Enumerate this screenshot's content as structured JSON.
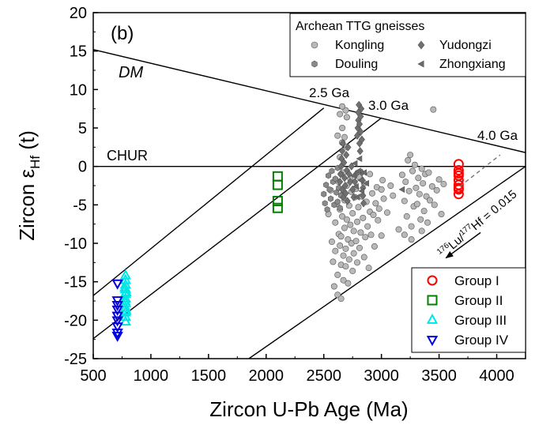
{
  "chart_data": {
    "type": "scatter",
    "panel_label": "(b)",
    "xlabel": "Zircon U-Pb Age (Ma)",
    "ylabel": {
      "main": "Zircon ε",
      "sub": "Hf",
      "tail": " (t)"
    },
    "xlim": [
      500,
      4250
    ],
    "ylim": [
      -25,
      20
    ],
    "xticks": [
      500,
      1000,
      1500,
      2000,
      2500,
      3000,
      3500,
      4000
    ],
    "yticks": [
      -25,
      -20,
      -15,
      -10,
      -5,
      0,
      5,
      10,
      15,
      20
    ],
    "grid": false,
    "reference_lines": [
      {
        "label": "DM",
        "points": [
          [
            500,
            15.2
          ],
          [
            4250,
            1.8
          ]
        ]
      },
      {
        "label": "CHUR",
        "points": [
          [
            500,
            0
          ],
          [
            4250,
            0
          ]
        ]
      }
    ],
    "evolution_lines": [
      {
        "label": "2.5 Ga",
        "points": [
          [
            500,
            -16.8
          ],
          [
            2500,
            7.6
          ]
        ]
      },
      {
        "label": "3.0 Ga",
        "points": [
          [
            500,
            -22.4
          ],
          [
            3000,
            6.3
          ]
        ]
      },
      {
        "label": "4.0 Ga",
        "points": [
          [
            1850,
            -25
          ],
          [
            4250,
            0
          ]
        ]
      }
    ],
    "slope_annotation": {
      "text_parts": [
        "176",
        "Lu/",
        "177",
        "Hf = 0.015"
      ],
      "arrow_from": [
        3860,
        -8.6
      ],
      "arrow_to": [
        3560,
        -11.9
      ],
      "dashed_from": [
        3680,
        -2.6
      ],
      "dashed_to": [
        4030,
        1.5
      ]
    },
    "legend_top": {
      "title": "Archean TTG gneisses",
      "position": "top-right",
      "entries": [
        {
          "name": "Kongling",
          "marker": "circle"
        },
        {
          "name": "Yudongzi",
          "marker": "diamond"
        },
        {
          "name": "Douling",
          "marker": "hexagon"
        },
        {
          "name": "Zhongxiang",
          "marker": "triangle-left"
        }
      ]
    },
    "legend_bottom": {
      "position": "bottom-right",
      "entries": [
        {
          "name": "Group I",
          "marker": "circle-open",
          "color": "#ff0000"
        },
        {
          "name": "Group II",
          "marker": "square-open",
          "color": "#008000"
        },
        {
          "name": "Group III",
          "marker": "triangle-up-open",
          "color": "#00e5e5"
        },
        {
          "name": "Group IV",
          "marker": "triangle-down-open",
          "color": "#0000dd"
        }
      ]
    },
    "series": [
      {
        "name": "Group I",
        "marker": "circle-open",
        "color": "#ff0000",
        "points": [
          [
            3670,
            0.3
          ],
          [
            3670,
            -0.5
          ],
          [
            3670,
            -1.2
          ],
          [
            3670,
            -1.8
          ],
          [
            3670,
            -2.4
          ],
          [
            3670,
            -3.0
          ],
          [
            3670,
            -3.6
          ],
          [
            3670,
            -0.9
          ],
          [
            3670,
            -2.8
          ]
        ]
      },
      {
        "name": "Group II",
        "marker": "square-open",
        "color": "#008000",
        "points": [
          [
            2100,
            -1.3
          ],
          [
            2100,
            -2.4
          ],
          [
            2100,
            -4.5
          ],
          [
            2100,
            -5.4
          ]
        ]
      },
      {
        "name": "Group III",
        "marker": "triangle-up-open",
        "color": "#00e5e5",
        "points": [
          [
            780,
            -14.2
          ],
          [
            780,
            -14.8
          ],
          [
            780,
            -15.4
          ],
          [
            780,
            -16.0
          ],
          [
            780,
            -16.6
          ],
          [
            780,
            -17.2
          ],
          [
            780,
            -17.8
          ],
          [
            780,
            -18.4
          ],
          [
            780,
            -19.0
          ],
          [
            780,
            -19.6
          ],
          [
            780,
            -20.2
          ],
          [
            775,
            -15.8
          ],
          [
            775,
            -17.5
          ],
          [
            785,
            -18.8
          ],
          [
            785,
            -16.4
          ]
        ]
      },
      {
        "name": "Group IV",
        "marker": "triangle-down-open",
        "color": "#0000dd",
        "points": [
          [
            710,
            -15.2
          ],
          [
            710,
            -17.4
          ],
          [
            710,
            -18.0
          ],
          [
            710,
            -18.6
          ],
          [
            710,
            -19.4
          ],
          [
            710,
            -20.0
          ],
          [
            710,
            -20.8
          ],
          [
            710,
            -21.6
          ],
          [
            710,
            -22.0
          ]
        ]
      },
      {
        "name": "Kongling",
        "marker": "circle",
        "color": "#b8b8b8",
        "points": [
          [
            2540,
            -6.2
          ],
          [
            2560,
            -3.1
          ],
          [
            2570,
            -9.8
          ],
          [
            2580,
            -12.4
          ],
          [
            2590,
            -15.6
          ],
          [
            2600,
            -11.0
          ],
          [
            2600,
            -7.3
          ],
          [
            2610,
            -4.9
          ],
          [
            2620,
            -14.1
          ],
          [
            2620,
            -16.7
          ],
          [
            2630,
            -8.8
          ],
          [
            2630,
            -2.0
          ],
          [
            2640,
            -10.3
          ],
          [
            2640,
            -5.6
          ],
          [
            2640,
            1.2
          ],
          [
            2650,
            -12.8
          ],
          [
            2650,
            -17.2
          ],
          [
            2650,
            -9.1
          ],
          [
            2660,
            -6.5
          ],
          [
            2660,
            -3.7
          ],
          [
            2660,
            3.1
          ],
          [
            2660,
            5.0
          ],
          [
            2670,
            -11.6
          ],
          [
            2670,
            -14.8
          ],
          [
            2670,
            -0.8
          ],
          [
            2680,
            -8.0
          ],
          [
            2680,
            -4.4
          ],
          [
            2690,
            -13.0
          ],
          [
            2690,
            -10.7
          ],
          [
            2690,
            7.3
          ],
          [
            2700,
            -6.9
          ],
          [
            2700,
            -2.5
          ],
          [
            2700,
            6.4
          ],
          [
            2710,
            -15.2
          ],
          [
            2710,
            -9.5
          ],
          [
            2720,
            -12.1
          ],
          [
            2720,
            -5.1
          ],
          [
            2730,
            -7.6
          ],
          [
            2730,
            -1.6
          ],
          [
            2740,
            -10.0
          ],
          [
            2740,
            -3.3
          ],
          [
            2750,
            -13.6
          ],
          [
            2750,
            -6.1
          ],
          [
            2760,
            -8.4
          ],
          [
            2760,
            -11.3
          ],
          [
            2770,
            -4.0
          ],
          [
            2780,
            -9.7
          ],
          [
            2780,
            -2.9
          ],
          [
            2790,
            -7.2
          ],
          [
            2790,
            -12.5
          ],
          [
            2800,
            -5.3
          ],
          [
            2810,
            -10.6
          ],
          [
            2810,
            -1.4
          ],
          [
            2820,
            -8.6
          ],
          [
            2830,
            -3.9
          ],
          [
            2840,
            -6.7
          ],
          [
            2850,
            -11.8
          ],
          [
            2850,
            -2.2
          ],
          [
            2860,
            -9.2
          ],
          [
            2870,
            -4.6
          ],
          [
            2880,
            -7.8
          ],
          [
            2890,
            -13.2
          ],
          [
            2900,
            -5.9
          ],
          [
            2900,
            -1.0
          ],
          [
            2910,
            -8.9
          ],
          [
            2920,
            -3.5
          ],
          [
            2930,
            -6.3
          ],
          [
            2940,
            -10.4
          ],
          [
            2950,
            -4.8
          ],
          [
            2960,
            -2.7
          ],
          [
            2970,
            -7.0
          ],
          [
            2980,
            -5.5
          ],
          [
            3000,
            -3.0
          ],
          [
            3000,
            -9.0
          ],
          [
            3010,
            -1.8
          ],
          [
            3020,
            -4.2
          ],
          [
            3050,
            -6.0
          ],
          [
            3080,
            -2.5
          ],
          [
            3100,
            -3.8
          ],
          [
            3150,
            -8.2
          ],
          [
            3180,
            -1.1
          ],
          [
            3200,
            -4.5
          ],
          [
            3210,
            -2.0
          ],
          [
            3220,
            -6.5
          ],
          [
            3230,
            0.8
          ],
          [
            3240,
            -3.2
          ],
          [
            3250,
            1.5
          ],
          [
            3260,
            -7.8
          ],
          [
            3270,
            -0.6
          ],
          [
            3280,
            -5.2
          ],
          [
            3290,
            0.2
          ],
          [
            3300,
            -2.8
          ],
          [
            3310,
            -4.9
          ],
          [
            3320,
            -1.5
          ],
          [
            3330,
            -3.6
          ],
          [
            3340,
            -6.9
          ],
          [
            3350,
            -0.3
          ],
          [
            3360,
            -2.2
          ],
          [
            3370,
            -5.8
          ],
          [
            3380,
            -1.0
          ],
          [
            3390,
            -3.9
          ],
          [
            3400,
            -7.3
          ],
          [
            3410,
            -0.8
          ],
          [
            3420,
            -4.4
          ],
          [
            3440,
            -2.6
          ],
          [
            3450,
            7.4
          ],
          [
            3460,
            -5.0
          ],
          [
            3480,
            -3.1
          ],
          [
            3500,
            -1.7
          ],
          [
            3520,
            -6.2
          ],
          [
            3540,
            -2.3
          ],
          [
            3200,
            -8.9
          ],
          [
            3260,
            -9.5
          ],
          [
            3350,
            -8.4
          ],
          [
            2620,
            4.0
          ],
          [
            2640,
            6.8
          ],
          [
            2660,
            7.8
          ],
          [
            2700,
            2.5
          ],
          [
            2680,
            3.8
          ]
        ]
      },
      {
        "name": "Douling",
        "marker": "hexagon",
        "color": "#8a8a8a",
        "points": [
          [
            2500,
            -3.6
          ],
          [
            2510,
            -4.8
          ],
          [
            2520,
            -2.4
          ],
          [
            2530,
            -5.6
          ],
          [
            2540,
            -1.2
          ],
          [
            2550,
            -3.0
          ],
          [
            2560,
            -4.2
          ],
          [
            2570,
            -0.6
          ],
          [
            2580,
            -2.0
          ],
          [
            2590,
            -5.0
          ],
          [
            2600,
            -1.6
          ],
          [
            2610,
            -3.4
          ],
          [
            2620,
            -0.2
          ],
          [
            2620,
            -4.6
          ],
          [
            2630,
            -2.8
          ],
          [
            2640,
            -5.4
          ],
          [
            2650,
            -1.0
          ],
          [
            2650,
            -3.8
          ]
        ]
      },
      {
        "name": "Yudongzi",
        "marker": "diamond",
        "color": "#707070",
        "points": [
          [
            2640,
            -2.0
          ],
          [
            2645,
            -1.0
          ],
          [
            2650,
            0.0
          ],
          [
            2655,
            1.0
          ],
          [
            2660,
            2.0
          ],
          [
            2660,
            -3.0
          ],
          [
            2665,
            3.0
          ],
          [
            2670,
            -4.0
          ],
          [
            2675,
            0.5
          ],
          [
            2680,
            -1.5
          ],
          [
            2685,
            -2.5
          ],
          [
            2690,
            -3.5
          ],
          [
            2695,
            1.5
          ],
          [
            2700,
            -0.5
          ],
          [
            2705,
            -4.5
          ],
          [
            2710,
            2.5
          ],
          [
            2720,
            -1.0
          ],
          [
            2730,
            -2.0
          ],
          [
            2740,
            0.0
          ],
          [
            2750,
            -3.0
          ],
          [
            2760,
            -4.0
          ],
          [
            2770,
            -2.0
          ],
          [
            2780,
            -1.0
          ],
          [
            2790,
            4.0
          ],
          [
            2795,
            5.0
          ],
          [
            2800,
            6.0
          ],
          [
            2800,
            7.0
          ],
          [
            2805,
            8.0
          ],
          [
            2810,
            5.5
          ],
          [
            2810,
            3.0
          ],
          [
            2815,
            2.0
          ],
          [
            2820,
            6.5
          ],
          [
            2820,
            4.5
          ],
          [
            2825,
            7.5
          ],
          [
            2830,
            3.5
          ],
          [
            2830,
            -0.8
          ],
          [
            2835,
            -1.8
          ],
          [
            2840,
            -2.8
          ],
          [
            2840,
            -3.8
          ],
          [
            2845,
            -4.8
          ]
        ]
      },
      {
        "name": "Zhongxiang",
        "marker": "triangle-left",
        "color": "#6a6a6a",
        "points": [
          [
            2760,
            -1.2
          ],
          [
            2770,
            0.4
          ],
          [
            2780,
            -2.6
          ],
          [
            2790,
            -4.0
          ],
          [
            2800,
            -0.6
          ],
          [
            2810,
            1.0
          ],
          [
            2820,
            -1.8
          ],
          [
            2830,
            -3.2
          ],
          [
            2850,
            -0.8
          ],
          [
            2870,
            -2.2
          ],
          [
            3180,
            -3.0
          ]
        ]
      }
    ]
  }
}
